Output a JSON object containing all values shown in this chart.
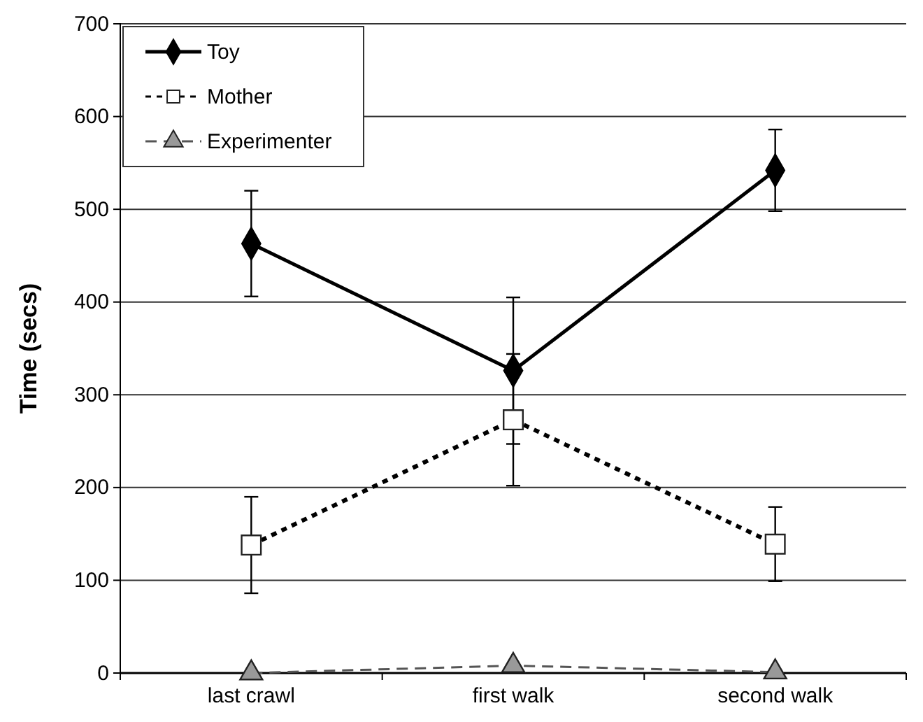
{
  "chart_data": {
    "type": "line",
    "ylabel": "Time (secs)",
    "categories": [
      "last crawl",
      "first walk",
      "second walk"
    ],
    "series": [
      {
        "name": "Toy",
        "color": "#000000",
        "marker": "diamond",
        "line_style": "solid",
        "values": [
          463,
          326,
          542
        ],
        "errors": [
          57,
          79,
          44
        ]
      },
      {
        "name": "Mother",
        "color": "#000000",
        "marker": "square",
        "line_style": "dotted",
        "values": [
          138,
          273,
          139
        ],
        "errors": [
          52,
          71,
          40
        ]
      },
      {
        "name": "Experimenter",
        "color": "#555555",
        "marker": "triangle",
        "line_style": "dashed",
        "values": [
          0,
          8,
          1
        ]
      }
    ],
    "ylim": [
      0,
      700
    ],
    "yticks": [
      0,
      100,
      200,
      300,
      400,
      500,
      600,
      700
    ],
    "grid": "y",
    "legend": "top left"
  }
}
